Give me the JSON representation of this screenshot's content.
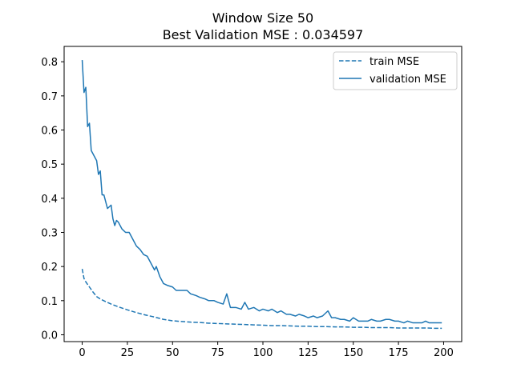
{
  "chart_data": {
    "type": "line",
    "title": "Window Size 50",
    "subtitle": "Best Validation MSE : 0.034597",
    "xlabel": "",
    "ylabel": "",
    "xlim": [
      -10,
      210
    ],
    "ylim": [
      -0.02,
      0.845
    ],
    "xticks": [
      0,
      25,
      50,
      75,
      100,
      125,
      150,
      175,
      200
    ],
    "yticks": [
      0.0,
      0.1,
      0.2,
      0.3,
      0.4,
      0.5,
      0.6,
      0.7,
      0.8
    ],
    "xtick_labels": [
      "0",
      "25",
      "50",
      "75",
      "100",
      "125",
      "150",
      "175",
      "200"
    ],
    "ytick_labels": [
      "0.0",
      "0.1",
      "0.2",
      "0.3",
      "0.4",
      "0.5",
      "0.6",
      "0.7",
      "0.8"
    ],
    "grid": false,
    "legend": {
      "placement": "upper right",
      "entries": [
        {
          "label": "train MSE",
          "style": "dashed"
        },
        {
          "label": "validation MSE",
          "style": "solid"
        }
      ]
    },
    "line_color": "#1f77b4",
    "series": [
      {
        "name": "train MSE",
        "style": "dashed",
        "x": [
          0,
          1,
          2,
          4,
          6,
          8,
          10,
          13,
          16,
          20,
          25,
          30,
          35,
          40,
          45,
          50,
          55,
          60,
          65,
          70,
          75,
          80,
          85,
          90,
          95,
          100,
          105,
          110,
          115,
          120,
          125,
          130,
          135,
          140,
          145,
          150,
          155,
          160,
          165,
          170,
          175,
          180,
          185,
          190,
          195,
          199
        ],
        "values": [
          0.193,
          0.165,
          0.155,
          0.14,
          0.125,
          0.112,
          0.105,
          0.097,
          0.09,
          0.082,
          0.073,
          0.065,
          0.058,
          0.052,
          0.045,
          0.041,
          0.039,
          0.037,
          0.036,
          0.034,
          0.033,
          0.032,
          0.031,
          0.03,
          0.029,
          0.028,
          0.027,
          0.027,
          0.026,
          0.025,
          0.025,
          0.024,
          0.024,
          0.023,
          0.023,
          0.022,
          0.022,
          0.021,
          0.021,
          0.021,
          0.02,
          0.02,
          0.02,
          0.02,
          0.019,
          0.019
        ]
      },
      {
        "name": "validation MSE",
        "style": "solid",
        "x": [
          0,
          1,
          2,
          3,
          4,
          5,
          6,
          8,
          9,
          10,
          11,
          12,
          13,
          14,
          15,
          16,
          17,
          18,
          19,
          20,
          22,
          24,
          26,
          28,
          30,
          32,
          34,
          36,
          38,
          40,
          41,
          43,
          45,
          47,
          50,
          52,
          55,
          58,
          60,
          63,
          65,
          68,
          70,
          73,
          75,
          78,
          80,
          82,
          85,
          88,
          90,
          92,
          95,
          98,
          100,
          103,
          105,
          108,
          110,
          113,
          115,
          118,
          120,
          123,
          125,
          128,
          130,
          133,
          136,
          138,
          140,
          143,
          145,
          148,
          150,
          153,
          155,
          158,
          160,
          163,
          165,
          168,
          170,
          173,
          175,
          178,
          180,
          183,
          185,
          188,
          190,
          192,
          194,
          196,
          199
        ],
        "values": [
          0.805,
          0.71,
          0.725,
          0.61,
          0.62,
          0.54,
          0.53,
          0.51,
          0.47,
          0.48,
          0.41,
          0.41,
          0.39,
          0.37,
          0.375,
          0.38,
          0.34,
          0.32,
          0.335,
          0.33,
          0.31,
          0.3,
          0.3,
          0.28,
          0.26,
          0.25,
          0.235,
          0.23,
          0.21,
          0.19,
          0.2,
          0.17,
          0.15,
          0.145,
          0.14,
          0.13,
          0.13,
          0.13,
          0.12,
          0.115,
          0.11,
          0.105,
          0.1,
          0.1,
          0.095,
          0.09,
          0.12,
          0.08,
          0.08,
          0.075,
          0.095,
          0.075,
          0.08,
          0.07,
          0.075,
          0.07,
          0.075,
          0.065,
          0.07,
          0.06,
          0.06,
          0.055,
          0.06,
          0.055,
          0.05,
          0.055,
          0.05,
          0.055,
          0.07,
          0.05,
          0.05,
          0.045,
          0.045,
          0.04,
          0.05,
          0.04,
          0.04,
          0.04,
          0.045,
          0.04,
          0.04,
          0.045,
          0.045,
          0.04,
          0.04,
          0.035,
          0.04,
          0.035,
          0.035,
          0.035,
          0.04,
          0.035,
          0.035,
          0.035,
          0.035
        ]
      }
    ]
  }
}
